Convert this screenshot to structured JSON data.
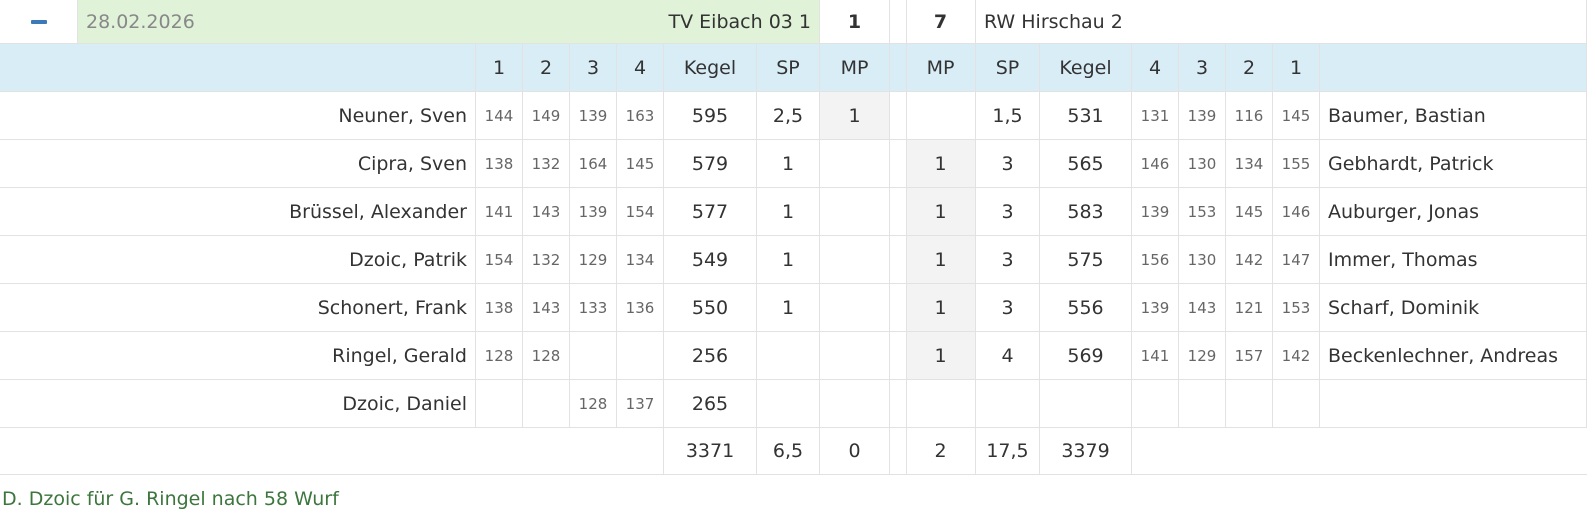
{
  "header": {
    "date": "28.02.2026",
    "home_team": "TV Eibach 03 1",
    "home_score": 1,
    "away_score": 7,
    "away_team": "RW Hirschau 2"
  },
  "columns": [
    1,
    2,
    3,
    4,
    "Kegel",
    "SP",
    "MP",
    "MP",
    "SP",
    "Kegel",
    4,
    3,
    2,
    1
  ],
  "rows": [
    [
      "Neuner, Sven",
      144,
      149,
      139,
      163,
      595,
      "2,5",
      1,
      null,
      "1,5",
      531,
      131,
      139,
      116,
      145,
      "Baumer, Bastian"
    ],
    [
      "Cipra, Sven",
      138,
      132,
      164,
      145,
      579,
      1,
      null,
      1,
      3,
      565,
      146,
      130,
      134,
      155,
      "Gebhardt, Patrick"
    ],
    [
      "Brüssel, Alexander",
      141,
      143,
      139,
      154,
      577,
      1,
      null,
      1,
      3,
      583,
      139,
      153,
      145,
      146,
      "Auburger, Jonas"
    ],
    [
      "Dzoic, Patrik",
      154,
      132,
      129,
      134,
      549,
      1,
      null,
      1,
      3,
      575,
      156,
      130,
      142,
      147,
      "Immer, Thomas"
    ],
    [
      "Schonert, Frank",
      138,
      143,
      133,
      136,
      550,
      1,
      null,
      1,
      3,
      556,
      139,
      143,
      121,
      153,
      "Scharf, Dominik"
    ],
    [
      "Ringel, Gerald",
      128,
      128,
      null,
      null,
      256,
      null,
      null,
      1,
      4,
      569,
      141,
      129,
      157,
      142,
      "Beckenlechner, Andreas"
    ],
    [
      "Dzoic, Daniel",
      null,
      null,
      128,
      137,
      265,
      null,
      null,
      null,
      null,
      null,
      null,
      null,
      null,
      null,
      null
    ]
  ],
  "totals": [
    3371,
    "6,5",
    0,
    2,
    "17,5",
    3379
  ],
  "note": "D. Dzoic für G. Ringel nach 58 Wurf"
}
